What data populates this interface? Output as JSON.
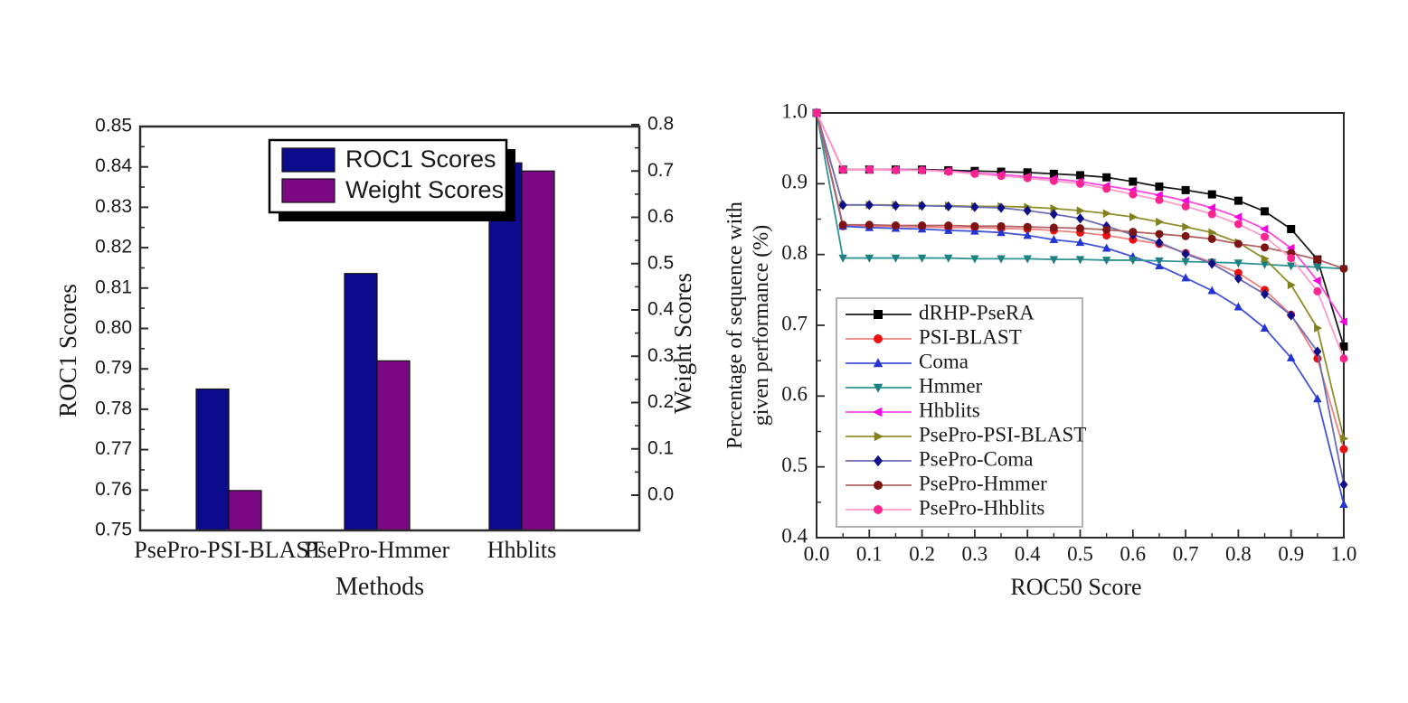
{
  "page": {
    "background": "#ffffff",
    "text_color": "#1a1a1a"
  },
  "chart_data": [
    {
      "id": "roc1-weight-bar-chart",
      "type": "bar",
      "title": "",
      "xlabel": "Methods",
      "ylabel_left": "ROC1 Scores",
      "ylabel_right": "Weight Scores",
      "categories": [
        "PsePro-PSI-BLAST",
        "PsePro-Hmmer",
        "Hhblits"
      ],
      "series": [
        {
          "name": "ROC1 Scores",
          "axis": "left",
          "color": "#0b0b8c",
          "values": [
            0.785,
            0.8136,
            0.841
          ]
        },
        {
          "name": "Weight Scores",
          "axis": "right",
          "color": "#7d0886",
          "values": [
            0.01,
            0.29,
            0.7
          ]
        }
      ],
      "axis_left": {
        "min": 0.75,
        "max": 0.85,
        "tick_labels": [
          "0.75",
          "0.76",
          "0.77",
          "0.78",
          "0.79",
          "0.80",
          "0.81",
          "0.82",
          "0.83",
          "0.84",
          "0.85"
        ]
      },
      "axis_right": {
        "min": 0.0,
        "max": 0.8,
        "tick_labels": [
          "0.0",
          "0.1",
          "0.2",
          "0.3",
          "0.4",
          "0.5",
          "0.6",
          "0.7",
          "0.8"
        ]
      },
      "legend": {
        "position": "top-center",
        "entries": [
          "ROC1 Scores",
          "Weight Scores"
        ]
      },
      "grid": false
    },
    {
      "id": "roc50-line-chart",
      "type": "line",
      "title": "",
      "xlabel": "ROC50 Score",
      "ylabel_line1": "Percentage of sequence with",
      "ylabel_line2": "given performance (%)",
      "xlim": [
        0.0,
        1.0
      ],
      "ylim": [
        0.4,
        1.0
      ],
      "x_tick_labels": [
        "0.0",
        "0.1",
        "0.2",
        "0.3",
        "0.4",
        "0.5",
        "0.6",
        "0.7",
        "0.8",
        "0.9",
        "1.0"
      ],
      "y_tick_labels": [
        "0.4",
        "0.5",
        "0.6",
        "0.7",
        "0.8",
        "0.9",
        "1.0"
      ],
      "legend_position": "lower-left",
      "grid": false,
      "x": [
        0,
        0.05,
        0.1,
        0.15,
        0.2,
        0.25,
        0.3,
        0.35,
        0.4,
        0.45,
        0.5,
        0.55,
        0.6,
        0.65,
        0.7,
        0.75,
        0.8,
        0.85,
        0.9,
        0.95,
        1.0
      ],
      "series": [
        {
          "name": "dRHP-PseRA",
          "marker": "square",
          "line_color": "#1a1a1a",
          "marker_color": "#000000",
          "values": [
            1.0,
            0.92,
            0.92,
            0.92,
            0.92,
            0.919,
            0.918,
            0.917,
            0.916,
            0.914,
            0.912,
            0.909,
            0.903,
            0.896,
            0.891,
            0.885,
            0.876,
            0.861,
            0.836,
            0.793,
            0.67
          ]
        },
        {
          "name": "PSI-BLAST",
          "marker": "circle",
          "line_color": "#f08080",
          "marker_color": "#e81212",
          "values": [
            1.0,
            0.84,
            0.84,
            0.84,
            0.839,
            0.838,
            0.838,
            0.837,
            0.836,
            0.834,
            0.831,
            0.827,
            0.821,
            0.815,
            0.802,
            0.789,
            0.774,
            0.75,
            0.715,
            0.653,
            0.525
          ]
        },
        {
          "name": "Coma",
          "marker": "triangle-up",
          "line_color": "#4053d8",
          "marker_color": "#2334d2",
          "values": [
            1.0,
            0.84,
            0.838,
            0.837,
            0.836,
            0.834,
            0.833,
            0.831,
            0.827,
            0.821,
            0.817,
            0.809,
            0.797,
            0.784,
            0.767,
            0.749,
            0.726,
            0.696,
            0.654,
            0.596,
            0.447
          ]
        },
        {
          "name": "Hmmer",
          "marker": "triangle-down",
          "line_color": "#2f9494",
          "marker_color": "#1d7f7f",
          "values": [
            1.0,
            0.795,
            0.795,
            0.795,
            0.795,
            0.795,
            0.794,
            0.794,
            0.794,
            0.793,
            0.793,
            0.792,
            0.792,
            0.791,
            0.79,
            0.789,
            0.788,
            0.786,
            0.784,
            0.782,
            0.78
          ]
        },
        {
          "name": "Hhblits",
          "marker": "triangle-left",
          "line_color": "#fb48e0",
          "marker_color": "#f500df",
          "values": [
            1.0,
            0.92,
            0.92,
            0.92,
            0.919,
            0.918,
            0.915,
            0.913,
            0.91,
            0.907,
            0.903,
            0.897,
            0.891,
            0.884,
            0.876,
            0.866,
            0.853,
            0.836,
            0.809,
            0.763,
            0.705
          ]
        },
        {
          "name": "PsePro-PSI-BLAST",
          "marker": "triangle-right",
          "line_color": "#8f8f2c",
          "marker_color": "#82821d",
          "values": [
            1.0,
            0.87,
            0.87,
            0.87,
            0.869,
            0.869,
            0.868,
            0.868,
            0.867,
            0.865,
            0.862,
            0.858,
            0.853,
            0.846,
            0.839,
            0.831,
            0.817,
            0.794,
            0.757,
            0.696,
            0.54
          ]
        },
        {
          "name": "PsePro-Coma",
          "marker": "diamond",
          "line_color": "#6d6db4",
          "marker_color": "#0e0e88",
          "values": [
            1.0,
            0.87,
            0.87,
            0.869,
            0.869,
            0.868,
            0.867,
            0.866,
            0.862,
            0.857,
            0.851,
            0.84,
            0.828,
            0.817,
            0.801,
            0.787,
            0.766,
            0.744,
            0.714,
            0.663,
            0.475
          ]
        },
        {
          "name": "PsePro-Hmmer",
          "marker": "circle",
          "line_color": "#b26262",
          "marker_color": "#7d1414",
          "values": [
            1.0,
            0.842,
            0.842,
            0.841,
            0.841,
            0.841,
            0.84,
            0.84,
            0.839,
            0.838,
            0.837,
            0.835,
            0.832,
            0.829,
            0.826,
            0.822,
            0.815,
            0.81,
            0.802,
            0.793,
            0.78
          ]
        },
        {
          "name": "PsePro-Hhblits",
          "marker": "circle",
          "line_color": "#ff9cca",
          "marker_color": "#fa2490",
          "values": [
            1.0,
            0.92,
            0.92,
            0.919,
            0.919,
            0.917,
            0.914,
            0.911,
            0.908,
            0.904,
            0.9,
            0.893,
            0.885,
            0.877,
            0.868,
            0.857,
            0.843,
            0.825,
            0.795,
            0.748,
            0.653
          ]
        }
      ]
    }
  ]
}
